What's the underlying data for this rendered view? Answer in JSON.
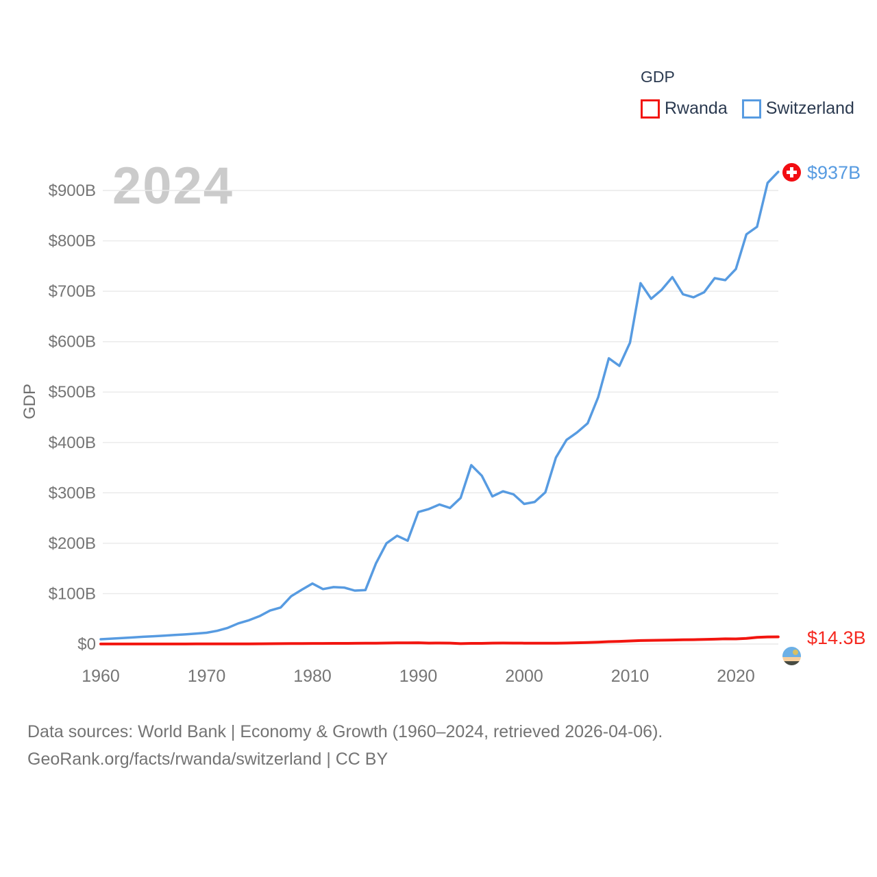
{
  "colors": {
    "background": "#ffffff",
    "rwanda_line": "#f2150f",
    "switzerland_line": "#579be1",
    "rwanda_end_label": "#f5281f",
    "switzerland_end_label": "#579be1",
    "axis_text": "#757575",
    "legend_text": "#2b3a50",
    "watermark": "#cbcbcb",
    "gridline": "#e9e9e9",
    "footer_text": "#737373",
    "swiss_flag_red": "#f20d12",
    "swiss_flag_cross": "#ffffff",
    "rwanda_flag_blue": "#6cb0e6",
    "rwanda_flag_sun": "#d8c063",
    "rwanda_flag_yellow": "#f7cf9e",
    "rwanda_flag_green": "#474b42"
  },
  "watermark_year": "2024",
  "legend": {
    "title": "GDP",
    "items": [
      {
        "label": "Rwanda",
        "color": "#f2150f"
      },
      {
        "label": "Switzerland",
        "color": "#579be1"
      }
    ]
  },
  "y_axis_title": "GDP",
  "footer": {
    "line1": "Data sources: World Bank | Economy & Growth (1960–2024, retrieved 2026-04-06).",
    "line2": "GeoRank.org/facts/rwanda/switzerland | CC BY"
  },
  "chart_data": {
    "type": "line",
    "title": "GDP",
    "xlabel": "",
    "ylabel": "GDP",
    "xlim": [
      1960,
      2024
    ],
    "ylim": [
      0,
      950
    ],
    "grid": "horizontal",
    "legend_position": "top-right",
    "x": [
      1960,
      1961,
      1962,
      1963,
      1964,
      1965,
      1966,
      1967,
      1968,
      1969,
      1970,
      1971,
      1972,
      1973,
      1974,
      1975,
      1976,
      1977,
      1978,
      1979,
      1980,
      1981,
      1982,
      1983,
      1984,
      1985,
      1986,
      1987,
      1988,
      1989,
      1990,
      1991,
      1992,
      1993,
      1994,
      1995,
      1996,
      1997,
      1998,
      1999,
      2000,
      2001,
      2002,
      2003,
      2004,
      2005,
      2006,
      2007,
      2008,
      2009,
      2010,
      2011,
      2012,
      2013,
      2014,
      2015,
      2016,
      2017,
      2018,
      2019,
      2020,
      2021,
      2022,
      2023,
      2024
    ],
    "x_ticks": [
      {
        "value": 1960,
        "label": "1960"
      },
      {
        "value": 1970,
        "label": "1970"
      },
      {
        "value": 1980,
        "label": "1980"
      },
      {
        "value": 1990,
        "label": "1990"
      },
      {
        "value": 2000,
        "label": "2000"
      },
      {
        "value": 2010,
        "label": "2010"
      },
      {
        "value": 2020,
        "label": "2020"
      }
    ],
    "y_ticks": [
      {
        "value": 0,
        "label": "$0"
      },
      {
        "value": 100,
        "label": "$100B"
      },
      {
        "value": 200,
        "label": "$200B"
      },
      {
        "value": 300,
        "label": "$300B"
      },
      {
        "value": 400,
        "label": "$400B"
      },
      {
        "value": 500,
        "label": "$500B"
      },
      {
        "value": 600,
        "label": "$600B"
      },
      {
        "value": 700,
        "label": "$700B"
      },
      {
        "value": 800,
        "label": "$800B"
      },
      {
        "value": 900,
        "label": "$900B"
      }
    ],
    "unit": "billion USD",
    "series": [
      {
        "name": "Rwanda",
        "color": "#f2150f",
        "end_label": "$14.3B",
        "values": [
          0.12,
          0.12,
          0.13,
          0.14,
          0.15,
          0.16,
          0.17,
          0.19,
          0.2,
          0.21,
          0.22,
          0.23,
          0.26,
          0.3,
          0.35,
          0.6,
          0.65,
          0.75,
          0.9,
          1.0,
          1.16,
          1.25,
          1.3,
          1.4,
          1.5,
          1.6,
          1.8,
          2.1,
          2.3,
          2.4,
          2.55,
          1.9,
          2.0,
          1.9,
          0.75,
          1.3,
          1.4,
          1.9,
          2.0,
          1.9,
          1.73,
          1.7,
          1.6,
          1.8,
          2.1,
          2.6,
          3.1,
          3.8,
          4.8,
          5.3,
          6.1,
          6.9,
          7.3,
          7.6,
          8.0,
          8.5,
          8.7,
          9.1,
          9.6,
          10.3,
          10.2,
          11.1,
          13.3,
          14.1,
          14.3
        ]
      },
      {
        "name": "Switzerland",
        "color": "#579be1",
        "end_label": "$937B",
        "values": [
          9.5,
          10.7,
          11.9,
          13.0,
          14.4,
          15.5,
          16.6,
          17.9,
          19.2,
          20.7,
          22.5,
          26.2,
          32.1,
          41.1,
          47.2,
          55.3,
          66.5,
          72.5,
          95,
          108,
          120,
          109,
          113,
          112,
          106,
          107,
          160,
          200,
          215,
          205,
          262,
          268,
          277,
          270,
          290,
          355,
          334,
          293,
          303,
          297,
          278,
          282,
          301,
          370,
          405,
          420,
          438,
          490,
          567,
          552,
          598,
          716,
          685,
          703,
          728,
          694,
          688,
          698,
          726,
          722,
          744,
          813,
          828,
          915,
          937
        ]
      }
    ]
  }
}
